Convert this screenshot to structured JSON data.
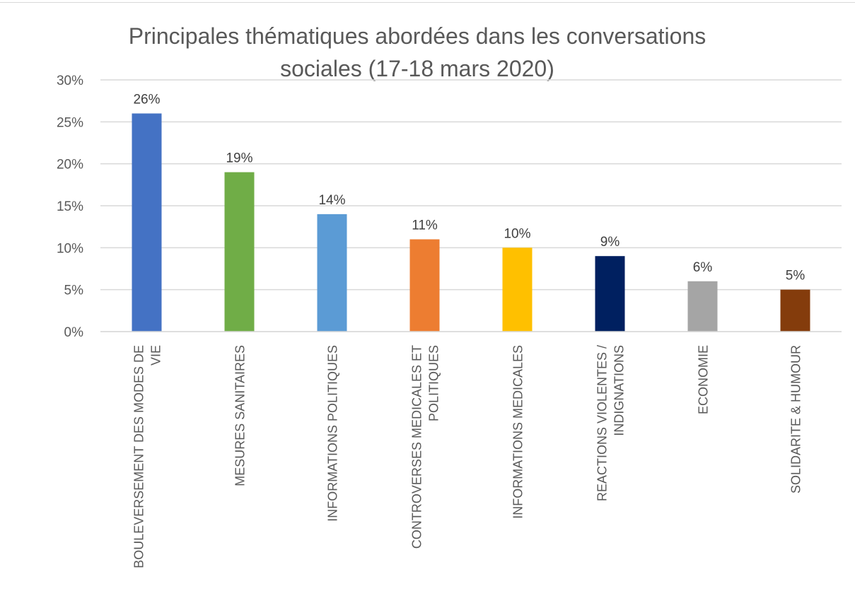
{
  "chart_data": {
    "type": "bar",
    "title_lines": [
      "Principales thématiques abordées dans les conversations",
      "sociales (17-18 mars 2020)"
    ],
    "categories": [
      [
        "BOULEVERSEMENT DES MODES DE",
        "VIE"
      ],
      [
        "MESURES SANITAIRES"
      ],
      [
        "INFORMATIONS POLITIQUES"
      ],
      [
        "CONTROVERSES MEDICALES ET",
        "POLITIQUES"
      ],
      [
        "INFORMATIONS MEDICALES"
      ],
      [
        "REACTIONS VIOLENTES /",
        "INDIGNATIONS"
      ],
      [
        "ECONOMIE"
      ],
      [
        "SOLIDARITE & HUMOUR"
      ]
    ],
    "values": [
      26,
      19,
      14,
      11,
      10,
      9,
      6,
      5
    ],
    "data_labels": [
      "26%",
      "19%",
      "14%",
      "11%",
      "10%",
      "9%",
      "6%",
      "5%"
    ],
    "bar_colors": [
      "#4472c4",
      "#70ad47",
      "#5b9bd5",
      "#ed7d31",
      "#ffc000",
      "#002060",
      "#a5a5a5",
      "#843c0c"
    ],
    "ylim": [
      0,
      30
    ],
    "yticks": [
      0,
      5,
      10,
      15,
      20,
      25,
      30
    ],
    "ytick_labels": [
      "0%",
      "5%",
      "10%",
      "15%",
      "20%",
      "25%",
      "30%"
    ],
    "grid": true,
    "legend": "none",
    "colors": {
      "grid": "#d9d9d9",
      "text": "#595959"
    }
  }
}
